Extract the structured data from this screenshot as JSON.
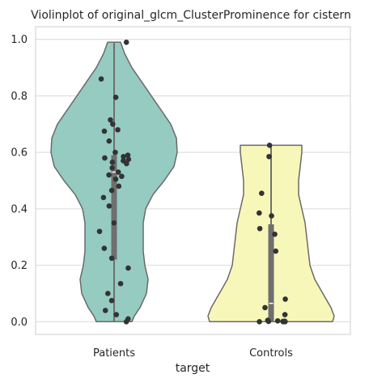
{
  "chart_data": {
    "type": "violin",
    "title": "Violinplot of original_glcm_ClusterProminence for cistern",
    "xlabel": "target",
    "ylabel": "",
    "ylim": [
      -0.045,
      1.045
    ],
    "yticks": [
      0.0,
      0.2,
      0.4,
      0.6,
      0.8,
      1.0
    ],
    "grid": true,
    "categories": [
      "Patients",
      "Controls"
    ],
    "colors": {
      "Patients": "#95cbc0",
      "Controls": "#f7f7b9",
      "edge": "#6a6a6a",
      "points": "#333333",
      "grid": "#d9d9d9",
      "box": "#6f6f6f",
      "median": "#ffffff"
    },
    "series": [
      {
        "name": "Patients",
        "points": [
          0.99,
          0.86,
          0.795,
          0.715,
          0.7,
          0.68,
          0.675,
          0.64,
          0.6,
          0.59,
          0.585,
          0.58,
          0.575,
          0.57,
          0.565,
          0.56,
          0.545,
          0.53,
          0.52,
          0.515,
          0.505,
          0.48,
          0.465,
          0.44,
          0.41,
          0.35,
          0.32,
          0.26,
          0.225,
          0.19,
          0.135,
          0.1,
          0.075,
          0.04,
          0.025,
          0.01,
          0.0
        ],
        "box": {
          "q1": 0.22,
          "median": 0.53,
          "q3": 0.59,
          "whisker_low": 0.0,
          "whisker_high": 0.99
        }
      },
      {
        "name": "Controls",
        "points": [
          0.625,
          0.585,
          0.455,
          0.385,
          0.375,
          0.33,
          0.31,
          0.25,
          0.08,
          0.05,
          0.025,
          0.005,
          0.003,
          0.002,
          0.001,
          0.001,
          0.0,
          0.0,
          0.0
        ],
        "box": {
          "q1": 0.0,
          "median": 0.065,
          "q3": 0.345,
          "whisker_low": 0.0,
          "whisker_high": 0.625
        }
      }
    ]
  }
}
